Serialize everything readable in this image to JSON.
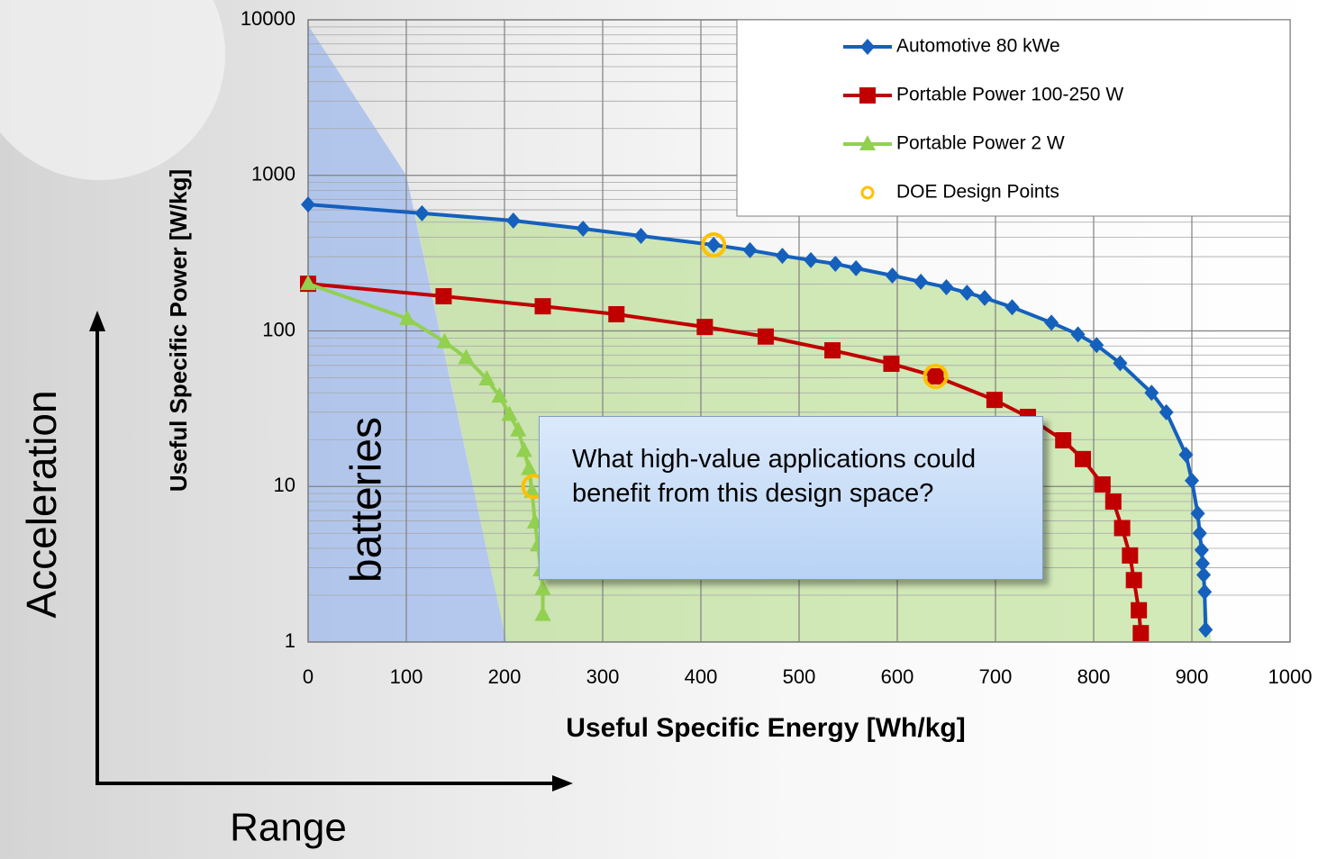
{
  "chart_data": {
    "type": "line",
    "x_label": "Useful Specific Energy [Wh/kg]",
    "y_label": "Useful Specific Power [W/kg]",
    "xlim": [
      0,
      1000
    ],
    "xticks": [
      0,
      100,
      200,
      300,
      400,
      500,
      600,
      700,
      800,
      900,
      1000
    ],
    "ylim": [
      1,
      10000
    ],
    "yticks": [
      1,
      10,
      100,
      1000,
      10000
    ],
    "yminorticks": [
      2,
      3,
      4,
      5,
      6,
      7,
      8,
      9,
      20,
      30,
      40,
      50,
      60,
      70,
      80,
      90,
      200,
      300,
      400,
      500,
      600,
      700,
      800,
      900,
      2000,
      3000,
      4000,
      5000,
      6000,
      7000,
      8000,
      9000
    ],
    "ylog": true,
    "grid": true,
    "legend": "upper right",
    "series": [
      {
        "name": "Automotive 80 kWe",
        "color": "#1560bd",
        "marker": "diamond",
        "x": [
          0,
          116,
          209,
          280,
          339,
          413,
          450,
          483,
          512,
          537,
          558,
          595,
          624,
          650,
          671,
          689,
          717,
          757,
          784,
          803,
          827,
          859,
          874,
          894,
          900,
          906,
          908,
          910,
          911,
          912,
          913,
          914
        ],
        "values": [
          650,
          570,
          512,
          454,
          408,
          357,
          330,
          304,
          285,
          270,
          253,
          227,
          207,
          191,
          176,
          163,
          142,
          113,
          95,
          81,
          62,
          40,
          30,
          16,
          10.9,
          6.7,
          5,
          3.9,
          3.2,
          2.7,
          2.1,
          1.2
        ]
      },
      {
        "name": "Portable Power 100-250 W",
        "color": "#c00000",
        "marker": "square",
        "x": [
          0,
          138,
          239,
          314,
          404,
          466,
          534,
          594,
          639,
          699,
          733,
          769,
          789,
          809,
          820,
          829,
          837,
          841,
          846,
          848
        ],
        "values": [
          201,
          167,
          144,
          128,
          106,
          92,
          75,
          61.5,
          51,
          36,
          28,
          19.8,
          15,
          10.3,
          8,
          5.4,
          3.6,
          2.5,
          1.6,
          1.14
        ]
      },
      {
        "name": "Portable Power 2 W",
        "color": "#92d050",
        "marker": "triangle",
        "x": [
          0,
          101,
          139,
          161,
          182,
          195,
          205,
          214,
          220,
          225,
          228,
          231,
          234,
          237,
          239,
          239
        ],
        "values": [
          201,
          120,
          85,
          67,
          49,
          38,
          29,
          23,
          17,
          13,
          9.3,
          5.9,
          4.2,
          2.9,
          2.2,
          1.5
        ]
      },
      {
        "name": "DOE Design Points",
        "color": "#ffc000",
        "marker": "circle",
        "line": false,
        "x": [
          413,
          639,
          230
        ],
        "values": [
          357,
          51,
          10
        ]
      }
    ],
    "regions": [
      {
        "label": "batteries",
        "color": "#8fb0f0",
        "x": [
          0,
          0,
          100,
          202
        ],
        "values": [
          1,
          9230,
          1000,
          1
        ]
      },
      {
        "color": "#b5dc8a",
        "x": [
          108,
          116,
          209,
          280,
          339,
          413,
          450,
          483,
          512,
          537,
          558,
          595,
          624,
          650,
          671,
          689,
          717,
          757,
          784,
          803,
          827,
          859,
          874,
          894,
          900,
          906,
          908,
          910,
          911,
          912,
          913,
          920,
          202
        ],
        "values": [
          600,
          570,
          512,
          454,
          408,
          357,
          330,
          304,
          285,
          270,
          253,
          227,
          207,
          191,
          176,
          163,
          142,
          113,
          95,
          81,
          62,
          40,
          30,
          16,
          10.9,
          6.7,
          5,
          3.9,
          3.2,
          2.7,
          2.1,
          1,
          1
        ]
      }
    ],
    "annotation": "What high-value applications could benefit from this design space?",
    "side_labels": {
      "vertical": "Acceleration",
      "horizontal": "Range"
    }
  }
}
